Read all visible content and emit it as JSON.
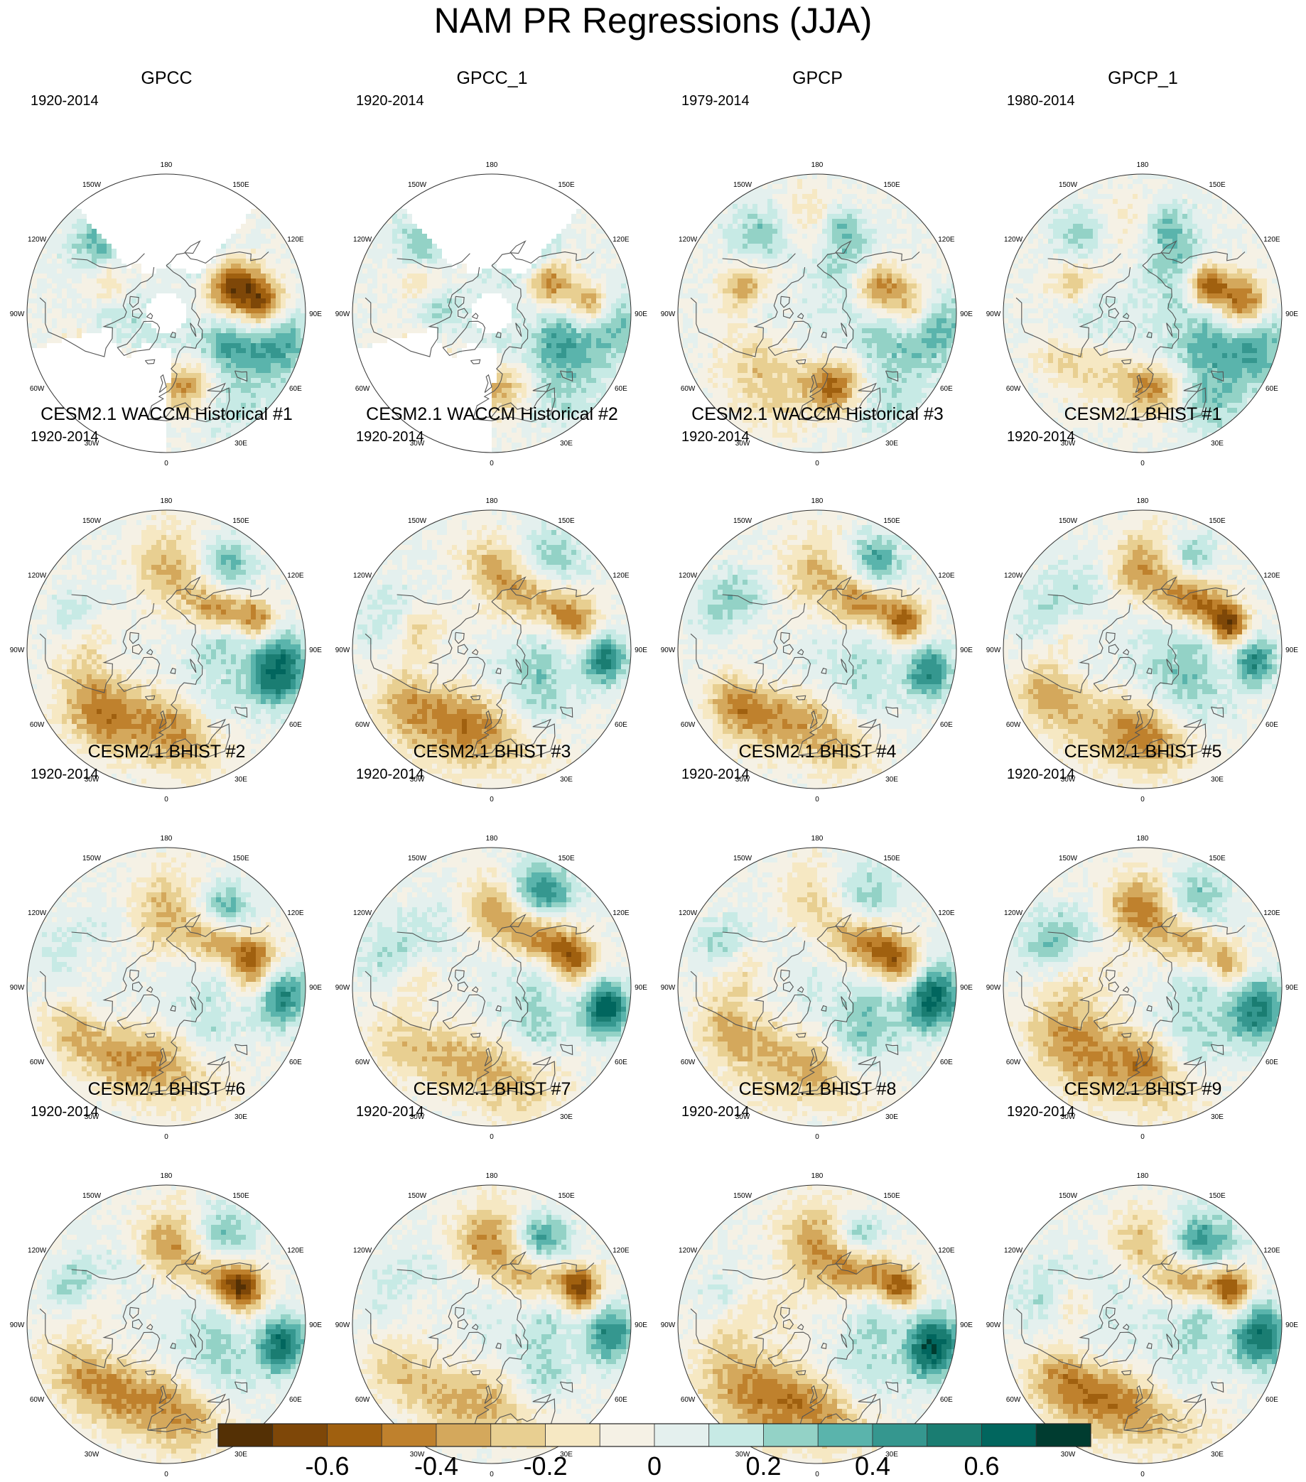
{
  "title": "NAM PR Regressions (JJA)",
  "panels": [
    {
      "title": "GPCC",
      "period": "1920-2014",
      "pattern": "gpcc",
      "seed": 11
    },
    {
      "title": "GPCC_1",
      "period": "1920-2014",
      "pattern": "gpcc",
      "seed": 12
    },
    {
      "title": "GPCP",
      "period": "1979-2014",
      "pattern": "gpcp",
      "seed": 13
    },
    {
      "title": "GPCP_1",
      "period": "1980-2014",
      "pattern": "gpcp",
      "seed": 14
    },
    {
      "title": "CESM2.1 WACCM Historical #1",
      "period": "1920-2014",
      "pattern": "model",
      "seed": 21
    },
    {
      "title": "CESM2.1 WACCM Historical #2",
      "period": "1920-2014",
      "pattern": "model",
      "seed": 22
    },
    {
      "title": "CESM2.1 WACCM Historical #3",
      "period": "1920-2014",
      "pattern": "model",
      "seed": 23
    },
    {
      "title": "CESM2.1 BHIST #1",
      "period": "1920-2014",
      "pattern": "model",
      "seed": 24
    },
    {
      "title": "CESM2.1 BHIST #2",
      "period": "1920-2014",
      "pattern": "model",
      "seed": 31
    },
    {
      "title": "CESM2.1 BHIST #3",
      "period": "1920-2014",
      "pattern": "model",
      "seed": 32
    },
    {
      "title": "CESM2.1 BHIST #4",
      "period": "1920-2014",
      "pattern": "model",
      "seed": 33
    },
    {
      "title": "CESM2.1 BHIST #5",
      "period": "1920-2014",
      "pattern": "model",
      "seed": 34
    },
    {
      "title": "CESM2.1 BHIST #6",
      "period": "1920-2014",
      "pattern": "model",
      "seed": 41
    },
    {
      "title": "CESM2.1 BHIST #7",
      "period": "1920-2014",
      "pattern": "model",
      "seed": 42
    },
    {
      "title": "CESM2.1 BHIST #8",
      "period": "1920-2014",
      "pattern": "model",
      "seed": 43
    },
    {
      "title": "CESM2.1 BHIST #9",
      "period": "1920-2014",
      "pattern": "model",
      "seed": 44
    }
  ],
  "longitude_labels": [
    "180",
    "150E",
    "120E",
    "90E",
    "60E",
    "30E",
    "0",
    "30W",
    "60W",
    "90W",
    "120W",
    "150W"
  ],
  "colorbar": {
    "min": -0.8,
    "max": 0.8,
    "step": 0.1,
    "tick_labels": [
      {
        "label": "-0.6",
        "value": -0.6
      },
      {
        "label": "-0.4",
        "value": -0.4
      },
      {
        "label": "-0.2",
        "value": -0.2
      },
      {
        "label": "0",
        "value": 0
      },
      {
        "label": "0.2",
        "value": 0.2
      },
      {
        "label": "0.4",
        "value": 0.4
      },
      {
        "label": "0.6",
        "value": 0.6
      }
    ],
    "colors": [
      "#543005",
      "#7e4708",
      "#a0600f",
      "#bf812d",
      "#d4a85c",
      "#e8cf91",
      "#f6e8c3",
      "#f5f1e5",
      "#e4f0ee",
      "#c7eae5",
      "#93d2c6",
      "#5ab4ac",
      "#35978f",
      "#1a7d72",
      "#01665e",
      "#003c30"
    ]
  },
  "colors": {
    "coastline": "#555555",
    "missing": "#ffffff",
    "border": "#333333"
  }
}
